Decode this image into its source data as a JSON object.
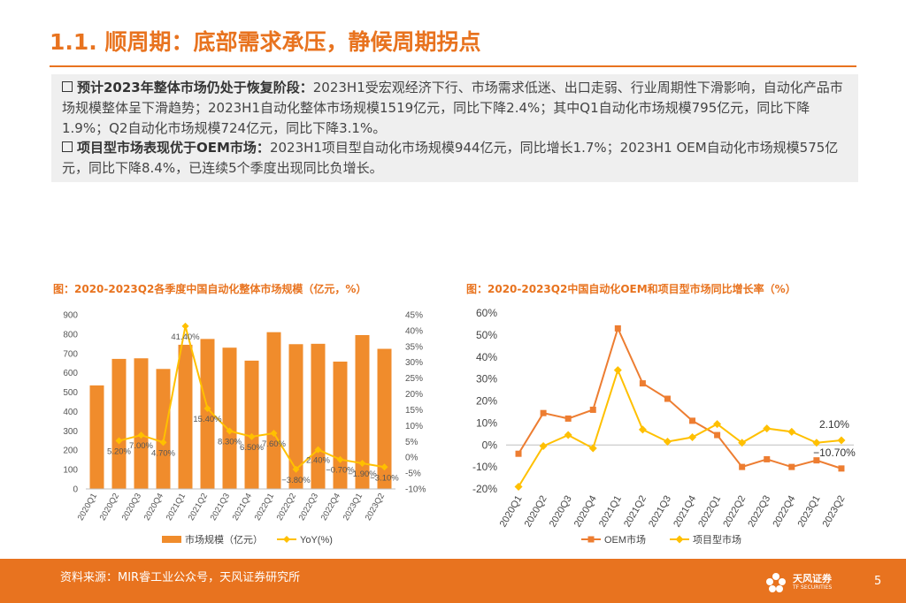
{
  "header": {
    "title": "1.1. 顺周期：底部需求承压，静候周期拐点"
  },
  "summary": {
    "p1_lead": "预计2023年整体市场仍处于恢复阶段：",
    "p1_text": "2023H1受宏观经济下行、市场需求低迷、出口走弱、行业周期性下滑影响，自动化产品市场规模整体呈下滑趋势；2023H1自动化整体市场规模1519亿元，同比下降2.4%；其中Q1自动化市场规模795亿元，同比下降1.9%；Q2自动化市场规模724亿元，同比下降3.1%。",
    "p2_lead": "项目型市场表现优于OEM市场：",
    "p2_text": "2023H1项目型自动化市场规模944亿元，同比增长1.7%；2023H1 OEM自动化市场规模575亿元，同比下降8.4%，已连续5个季度出现同比负增长。"
  },
  "chart_data": [
    {
      "type": "bar+line",
      "title": "图：2020-2023Q2各季度中国自动化整体市场规模（亿元，%）",
      "categories": [
        "2020Q1",
        "2020Q2",
        "2020Q3",
        "2020Q4",
        "2021Q1",
        "2021Q2",
        "2021Q3",
        "2021Q4",
        "2022Q1",
        "2022Q2",
        "2022Q3",
        "2022Q4",
        "2023Q1",
        "2023Q2"
      ],
      "series": [
        {
          "name": "市场规模（亿元）",
          "kind": "bar",
          "axis": "left",
          "color": "#f08c2c",
          "values": [
            535,
            672,
            675,
            620,
            745,
            775,
            730,
            663,
            810,
            748,
            750,
            658,
            795,
            724
          ]
        },
        {
          "name": "YoY(%)",
          "kind": "line",
          "axis": "right",
          "color": "#ffc000",
          "values": [
            null,
            5.2,
            7.0,
            4.7,
            41.4,
            15.4,
            8.3,
            6.5,
            7.6,
            -3.8,
            2.4,
            -0.7,
            -1.9,
            -3.1
          ],
          "labels": [
            "",
            "5.20%",
            "7.00%",
            "4.70%",
            "41.40%",
            "15.40%",
            "8.30%",
            "6.50%",
            "7.60%",
            "−3.80%",
            "2.40%",
            "−0.70%",
            "−1.90%",
            "−3.10%"
          ]
        }
      ],
      "left_axis": {
        "min": 0,
        "max": 900,
        "ticks": [
          "0",
          "100",
          "200",
          "300",
          "400",
          "500",
          "600",
          "700",
          "800",
          "900"
        ]
      },
      "right_axis": {
        "min": -10,
        "max": 45,
        "ticks": [
          "-10%",
          "-5%",
          "0%",
          "5%",
          "10%",
          "15%",
          "20%",
          "25%",
          "30%",
          "35%",
          "40%",
          "45%"
        ]
      },
      "legend": [
        "市场规模（亿元）",
        "YoY(%)"
      ]
    },
    {
      "type": "line",
      "title": "图：2020-2023Q2中国自动化OEM和项目型市场同比增长率（%）",
      "categories": [
        "2020Q1",
        "2020Q2",
        "2020Q3",
        "2020Q4",
        "2021Q1",
        "2021Q2",
        "2021Q3",
        "2021Q4",
        "2022Q1",
        "2022Q2",
        "2022Q3",
        "2022Q4",
        "2023Q1",
        "2023Q2"
      ],
      "series": [
        {
          "name": "OEM市场",
          "color": "#ed7d31",
          "marker": "square",
          "values": [
            -4,
            14.5,
            12,
            16,
            53,
            28,
            21,
            11,
            4.5,
            -10,
            -6.5,
            -10,
            -7,
            -10.7
          ]
        },
        {
          "name": "项目型市场",
          "color": "#ffc000",
          "marker": "diamond",
          "values": [
            -19,
            -0.5,
            4.5,
            -1.5,
            34,
            7,
            1.5,
            3.5,
            9.5,
            1,
            7.5,
            6,
            1,
            2.1
          ]
        }
      ],
      "annotations": [
        {
          "series": "项目型市场",
          "index": 13,
          "text": "2.10%"
        },
        {
          "series": "OEM市场",
          "index": 13,
          "text": "−10.70%"
        }
      ],
      "y_axis": {
        "min": -20,
        "max": 60,
        "ticks": [
          "-20%",
          "-10%",
          "0%",
          "10%",
          "20%",
          "30%",
          "40%",
          "50%",
          "60%"
        ]
      },
      "legend": [
        "OEM市场",
        "项目型市场"
      ]
    }
  ],
  "footer": {
    "source": "资料来源：MIR睿工业公众号，天风证券研究所",
    "brand": "天风证券",
    "brand_sub": "TF SECURITIES",
    "page": "5"
  }
}
